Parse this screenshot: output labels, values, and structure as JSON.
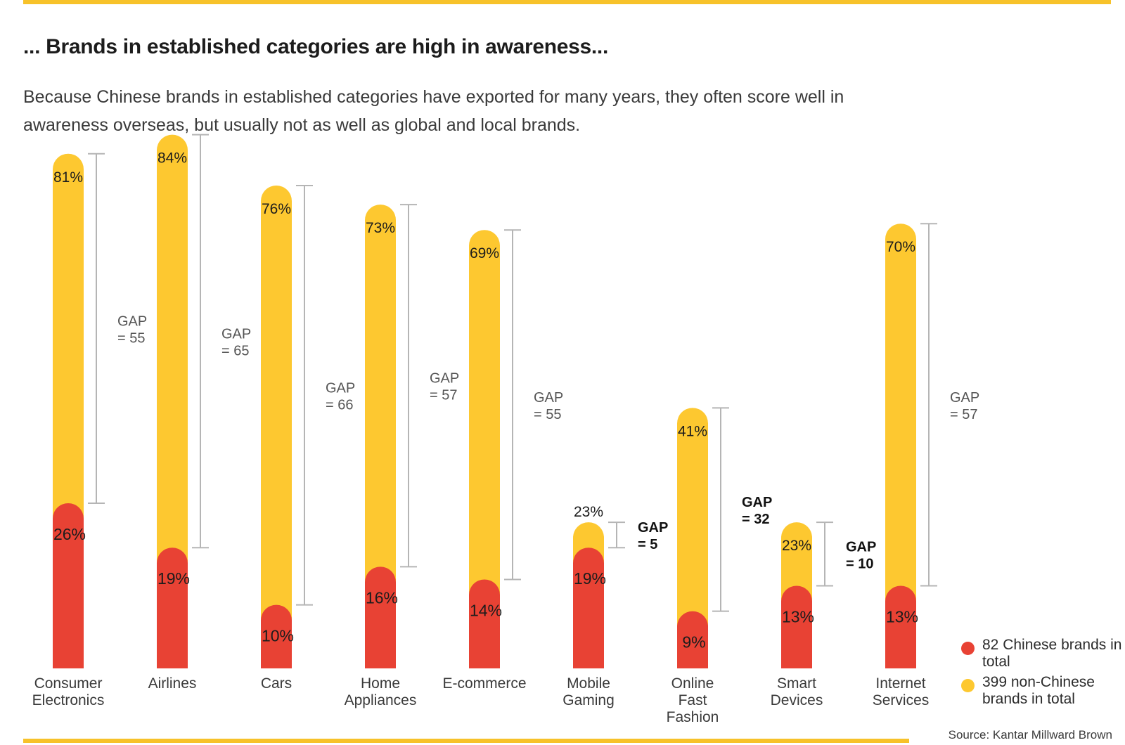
{
  "header": {
    "title": "... Brands in established categories are high in awareness...",
    "subtitle": "Because Chinese brands in established categories have exported for many years, they often score well in awareness overseas, but usually not as well as global and local brands."
  },
  "footer": {
    "source": "Source: Kantar Millward Brown"
  },
  "colors": {
    "non_chinese": "#fdc830",
    "chinese": "#e84234",
    "accent_rule": "#f7c22a",
    "bracket": "#b5b5b5"
  },
  "legend": [
    {
      "label": "82 Chinese brands in total",
      "color": "#e84234"
    },
    {
      "label": "399 non-Chinese brands in total",
      "color": "#fdc830"
    }
  ],
  "chart_data": {
    "type": "bar",
    "title": "... Brands in established categories are high in awareness...",
    "unit": "%",
    "categories": [
      "Consumer Electronics",
      "Airlines",
      "Cars",
      "Home Appliances",
      "E-commerce",
      "Mobile Gaming",
      "Online Fast Fashion",
      "Smart Devices",
      "Internet Services"
    ],
    "series": [
      {
        "name": "399 non-Chinese brands in total",
        "values": [
          81,
          84,
          76,
          73,
          69,
          23,
          41,
          23,
          70
        ],
        "labels": [
          "81%",
          "84%",
          "76%",
          "73%",
          "69%",
          "23%",
          "41%",
          "23%",
          "70%"
        ]
      },
      {
        "name": "82 Chinese brands in total",
        "values": [
          26,
          19,
          10,
          16,
          14,
          19,
          9,
          13,
          13
        ],
        "labels": [
          "26%",
          "19%",
          "10%",
          "16%",
          "14%",
          "19%",
          "9%",
          "13%",
          "13%"
        ]
      }
    ],
    "gaps": [
      {
        "line1": "GAP",
        "line2": "= 55",
        "emphasis": false
      },
      {
        "line1": "GAP",
        "line2": "= 65",
        "emphasis": false
      },
      {
        "line1": "GAP",
        "line2": "= 66",
        "emphasis": false
      },
      {
        "line1": "GAP",
        "line2": "= 57",
        "emphasis": false
      },
      {
        "line1": "GAP",
        "line2": "= 55",
        "emphasis": false
      },
      {
        "line1": "GAP",
        "line2": "= 5",
        "emphasis": true
      },
      {
        "line1": "GAP",
        "line2": "= 32",
        "emphasis": true
      },
      {
        "line1": "GAP",
        "line2": "= 10",
        "emphasis": true
      },
      {
        "line1": "GAP",
        "line2": "= 57",
        "emphasis": false
      }
    ],
    "ylim": [
      0,
      100
    ],
    "grid": false,
    "legend_position": "bottom-right"
  }
}
